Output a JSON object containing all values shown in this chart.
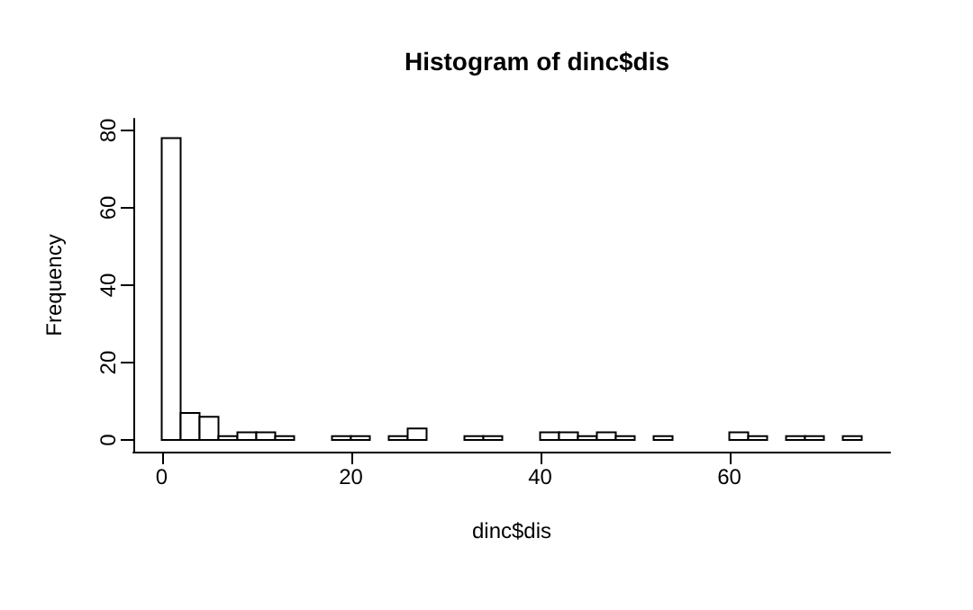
{
  "chart_data": {
    "type": "histogram",
    "title": "Histogram of dinc$dis",
    "xlabel": "dinc$dis",
    "ylabel": "Frequency",
    "bins": [
      0,
      2,
      4,
      6,
      8,
      10,
      12,
      14,
      16,
      18,
      20,
      22,
      24,
      26,
      28,
      30,
      32,
      34,
      36,
      38,
      40,
      42,
      44,
      46,
      48,
      50,
      52,
      54,
      56,
      58,
      60,
      62,
      64,
      66,
      68,
      70,
      72,
      74
    ],
    "values": [
      78,
      7,
      6,
      1,
      2,
      2,
      1,
      0,
      0,
      1,
      1,
      0,
      1,
      3,
      0,
      0,
      1,
      1,
      0,
      0,
      2,
      2,
      1,
      2,
      1,
      0,
      1,
      0,
      0,
      0,
      2,
      1,
      0,
      1,
      1,
      0,
      1
    ],
    "color": "#ffffff",
    "xlim": [
      -3,
      77
    ],
    "xticks": [
      0,
      20,
      40,
      60
    ],
    "ylim": [
      -3,
      83
    ],
    "yticks": [
      0,
      20,
      40,
      60,
      80
    ],
    "grid": false
  }
}
